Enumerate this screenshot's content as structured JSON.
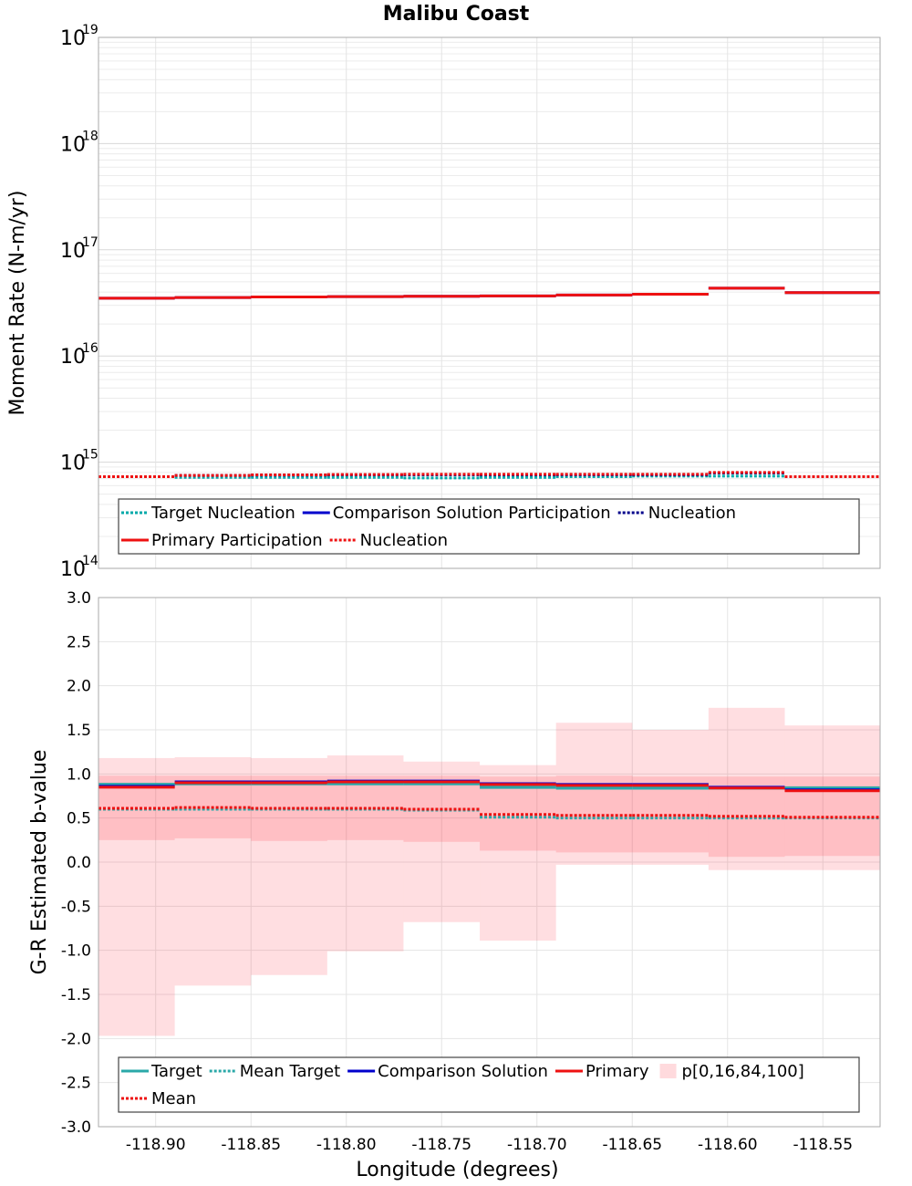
{
  "chart_title": "Malibu Coast",
  "chart_data": [
    {
      "type": "line",
      "title": "Malibu Coast",
      "ylabel": "Moment Rate (N-m/yr)",
      "xlabel": "",
      "yscale": "log",
      "ylim": [
        100000000000000.0,
        1e+19
      ],
      "xlim": [
        -118.93,
        -118.52
      ],
      "x_edges": [
        -118.93,
        -118.89,
        -118.85,
        -118.81,
        -118.77,
        -118.73,
        -118.69,
        -118.65,
        -118.61,
        -118.57,
        -118.52
      ],
      "y_tick_labels": [
        {
          "base": "10",
          "exp": "14",
          "value": 100000000000000.0
        },
        {
          "base": "10",
          "exp": "15",
          "value": 1000000000000000.0
        },
        {
          "base": "10",
          "exp": "16",
          "value": 1e+16
        },
        {
          "base": "10",
          "exp": "17",
          "value": 1e+17
        },
        {
          "base": "10",
          "exp": "18",
          "value": 1e+18
        },
        {
          "base": "10",
          "exp": "19",
          "value": 1e+19
        }
      ],
      "grid": true,
      "legend_position": "bottom",
      "series": [
        {
          "name": "Target Nucleation",
          "color": "#00aaaa",
          "style": "dotted",
          "values": [
            730000000000000.0,
            720000000000000.0,
            720000000000000.0,
            720000000000000.0,
            710000000000000.0,
            720000000000000.0,
            730000000000000.0,
            740000000000000.0,
            740000000000000.0,
            730000000000000.0
          ]
        },
        {
          "name": "Comparison Solution Participation",
          "color": "#0000cc",
          "style": "solid",
          "values": [
            3.5e+16,
            3.55e+16,
            3.6e+16,
            3.62e+16,
            3.65e+16,
            3.68e+16,
            3.75e+16,
            3.82e+16,
            4.35e+16,
            3.95e+16
          ]
        },
        {
          "name": "Nucleation",
          "color": "#00008b",
          "style": "dotted",
          "values": [
            730000000000000.0,
            750000000000000.0,
            755000000000000.0,
            760000000000000.0,
            760000000000000.0,
            760000000000000.0,
            760000000000000.0,
            760000000000000.0,
            790000000000000.0,
            730000000000000.0
          ]
        },
        {
          "name": "Primary Participation",
          "color": "#ee1111",
          "style": "solid",
          "values": [
            3.5e+16,
            3.55e+16,
            3.6e+16,
            3.62e+16,
            3.65e+16,
            3.68e+16,
            3.75e+16,
            3.82e+16,
            4.35e+16,
            3.95e+16
          ]
        },
        {
          "name": "Nucleation",
          "color": "#ee1111",
          "style": "dotted",
          "values": [
            730000000000000.0,
            750000000000000.0,
            760000000000000.0,
            765000000000000.0,
            770000000000000.0,
            770000000000000.0,
            770000000000000.0,
            770000000000000.0,
            800000000000000.0,
            730000000000000.0
          ]
        }
      ],
      "legend_rows": [
        [
          0,
          1,
          2
        ],
        [
          3,
          4
        ]
      ]
    },
    {
      "type": "line",
      "title": "",
      "xlabel": "Longitude (degrees)",
      "ylabel": "G-R Estimated b-value",
      "ylim": [
        -3.0,
        3.0
      ],
      "xlim": [
        -118.93,
        -118.52
      ],
      "x_edges": [
        -118.93,
        -118.89,
        -118.85,
        -118.81,
        -118.77,
        -118.73,
        -118.69,
        -118.65,
        -118.61,
        -118.57,
        -118.52
      ],
      "y_ticks": [
        "3.0",
        "2.5",
        "2.0",
        "1.5",
        "1.0",
        "0.5",
        "0.0",
        "-0.5",
        "-1.0",
        "-1.5",
        "-2.0",
        "-2.5",
        "-3.0"
      ],
      "x_ticks": [
        "-118.90",
        "-118.85",
        "-118.80",
        "-118.75",
        "-118.70",
        "-118.65",
        "-118.60",
        "-118.55"
      ],
      "grid": true,
      "legend_position": "bottom",
      "bands": {
        "name": "p[0,16,84,100]",
        "color": "#ff3344",
        "p0": [
          -1.97,
          -1.4,
          -1.28,
          -1.01,
          -0.68,
          -0.89,
          -0.03,
          -0.03,
          -0.09,
          -0.09
        ],
        "p16": [
          0.25,
          0.27,
          0.24,
          0.25,
          0.23,
          0.13,
          0.11,
          0.11,
          0.06,
          0.07
        ],
        "p84": [
          0.98,
          0.98,
          0.98,
          0.98,
          0.98,
          0.97,
          0.98,
          0.97,
          0.97,
          0.97
        ],
        "p100": [
          1.18,
          1.19,
          1.18,
          1.21,
          1.14,
          1.1,
          1.58,
          1.5,
          1.75,
          1.55
        ]
      },
      "series": [
        {
          "name": "Target",
          "color": "#2aa8a8",
          "style": "solid",
          "width": 3.5,
          "values": [
            0.88,
            0.89,
            0.89,
            0.89,
            0.89,
            0.85,
            0.84,
            0.84,
            0.84,
            0.84
          ]
        },
        {
          "name": "Mean Target",
          "color": "#2aa8a8",
          "style": "dotted",
          "width": 3,
          "values": [
            0.6,
            0.6,
            0.6,
            0.6,
            0.59,
            0.51,
            0.5,
            0.5,
            0.5,
            0.5
          ]
        },
        {
          "name": "Comparison Solution",
          "color": "#0000cc",
          "style": "solid",
          "width": 3,
          "values": [
            0.86,
            0.91,
            0.91,
            0.92,
            0.92,
            0.89,
            0.88,
            0.88,
            0.85,
            0.82
          ]
        },
        {
          "name": "Primary",
          "color": "#ee1111",
          "style": "solid",
          "width": 3,
          "values": [
            0.85,
            0.9,
            0.9,
            0.91,
            0.91,
            0.88,
            0.87,
            0.87,
            0.84,
            0.81
          ]
        },
        {
          "name": "Mean",
          "color": "#ee1111",
          "style": "dotted",
          "width": 3,
          "values": [
            0.61,
            0.62,
            0.61,
            0.61,
            0.6,
            0.54,
            0.53,
            0.53,
            0.52,
            0.51
          ]
        }
      ],
      "legend_rows": [
        [
          "s0",
          "s1",
          "s2",
          "s3",
          "band"
        ],
        [
          "s4"
        ]
      ]
    }
  ]
}
